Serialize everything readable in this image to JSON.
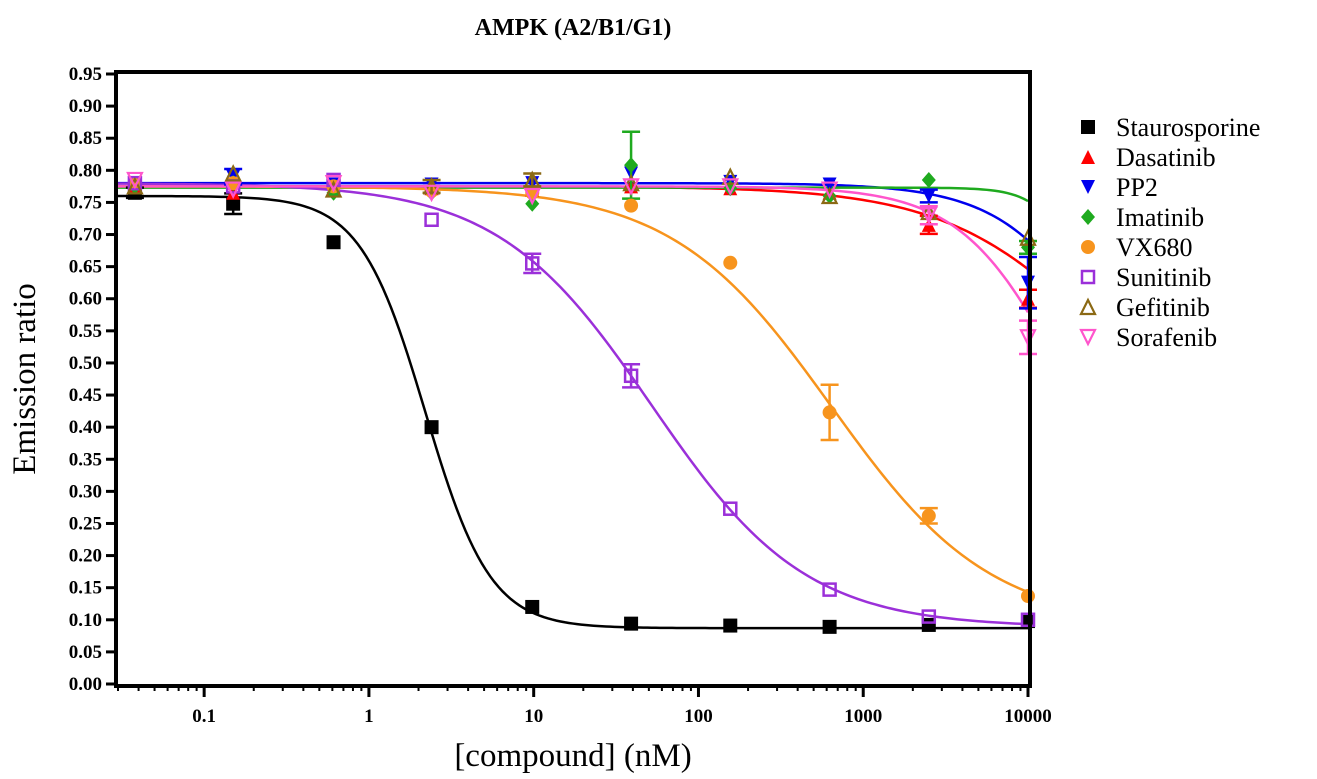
{
  "chart_data": {
    "type": "scatter",
    "title": "AMPK (A2/B1/G1)",
    "xlabel": "[compound] (nM)",
    "ylabel": "Emission ratio",
    "xscale": "log",
    "xlim": [
      0.03,
      10000
    ],
    "ylim": [
      0.0,
      0.95
    ],
    "xticks": [
      {
        "value": 0.1,
        "label": "0.1"
      },
      {
        "value": 1,
        "label": "1"
      },
      {
        "value": 10,
        "label": "10"
      },
      {
        "value": 100,
        "label": "100"
      },
      {
        "value": 1000,
        "label": "1000"
      },
      {
        "value": 10000,
        "label": "10000"
      }
    ],
    "yticks": [
      {
        "value": 0.0,
        "label": "0.00"
      },
      {
        "value": 0.05,
        "label": "0.05"
      },
      {
        "value": 0.1,
        "label": "0.10"
      },
      {
        "value": 0.15,
        "label": "0.15"
      },
      {
        "value": 0.2,
        "label": "0.20"
      },
      {
        "value": 0.25,
        "label": "0.25"
      },
      {
        "value": 0.3,
        "label": "0.30"
      },
      {
        "value": 0.35,
        "label": "0.35"
      },
      {
        "value": 0.4,
        "label": "0.40"
      },
      {
        "value": 0.45,
        "label": "0.45"
      },
      {
        "value": 0.5,
        "label": "0.50"
      },
      {
        "value": 0.55,
        "label": "0.55"
      },
      {
        "value": 0.6,
        "label": "0.60"
      },
      {
        "value": 0.65,
        "label": "0.65"
      },
      {
        "value": 0.7,
        "label": "0.70"
      },
      {
        "value": 0.75,
        "label": "0.75"
      },
      {
        "value": 0.8,
        "label": "0.80"
      },
      {
        "value": 0.85,
        "label": "0.85"
      },
      {
        "value": 0.9,
        "label": "0.90"
      },
      {
        "value": 0.95,
        "label": "0.95"
      }
    ],
    "grid": false,
    "legend_position": "right",
    "series": [
      {
        "name": "Staurosporine",
        "color": "#000000",
        "marker": "square-filled",
        "x": [
          0.038,
          0.15,
          0.61,
          2.4,
          9.8,
          39,
          156,
          625,
          2500,
          10000
        ],
        "y": [
          0.765,
          0.748,
          0.688,
          0.4,
          0.12,
          0.094,
          0.091,
          0.089,
          0.092,
          0.098
        ],
        "err": [
          0.008,
          0.016,
          0.006,
          0.006,
          0.006,
          0.004,
          0.004,
          0.004,
          0.004,
          0.004
        ],
        "fit": {
          "top": 0.76,
          "bottom": 0.087,
          "ec50": 2.2,
          "hill": 2.2
        }
      },
      {
        "name": "Dasatinib",
        "color": "#ff0000",
        "marker": "triangle-up-filled",
        "x": [
          0.038,
          0.15,
          0.61,
          2.4,
          9.8,
          39,
          156,
          625,
          2500,
          10000
        ],
        "y": [
          0.775,
          0.765,
          0.77,
          0.772,
          0.77,
          0.775,
          0.772,
          0.765,
          0.715,
          0.6
        ],
        "err": [
          0.006,
          0.006,
          0.006,
          0.006,
          0.006,
          0.006,
          0.006,
          0.006,
          0.014,
          0.014
        ],
        "fit": {
          "top": 0.775,
          "bottom": 0.3,
          "ec50": 30000,
          "hill": 0.9
        }
      },
      {
        "name": "PP2",
        "color": "#0000ee",
        "marker": "triangle-down-filled",
        "x": [
          0.038,
          0.15,
          0.61,
          2.4,
          9.8,
          39,
          156,
          625,
          2500,
          10000
        ],
        "y": [
          0.78,
          0.79,
          0.778,
          0.778,
          0.78,
          0.795,
          0.782,
          0.778,
          0.76,
          0.625
        ],
        "err": [
          0.006,
          0.012,
          0.006,
          0.006,
          0.006,
          0.006,
          0.006,
          0.006,
          0.01,
          0.04
        ],
        "fit": {
          "top": 0.78,
          "bottom": 0.15,
          "ec50": 40000,
          "hill": 1.3
        }
      },
      {
        "name": "Imatinib",
        "color": "#1faa1f",
        "marker": "diamond-filled",
        "x": [
          0.038,
          0.15,
          0.61,
          2.4,
          9.8,
          39,
          156,
          625,
          2500,
          10000
        ],
        "y": [
          0.775,
          0.78,
          0.765,
          0.765,
          0.748,
          0.808,
          0.772,
          0.76,
          0.785,
          0.68
        ],
        "err": [
          0.006,
          0.006,
          0.006,
          0.006,
          0.006,
          0.052,
          0.006,
          0.006,
          0.006,
          0.01
        ],
        "fit": {
          "top": 0.773,
          "bottom": 0.05,
          "ec50": 30000,
          "hill": 3.2
        }
      },
      {
        "name": "VX680",
        "color": "#f7941d",
        "marker": "circle-filled",
        "x": [
          0.038,
          0.15,
          0.61,
          2.4,
          9.8,
          39,
          156,
          625,
          2500,
          10000
        ],
        "y": [
          0.78,
          0.78,
          0.775,
          0.768,
          0.765,
          0.745,
          0.656,
          0.423,
          0.262,
          0.137
        ],
        "err": [
          0.006,
          0.006,
          0.006,
          0.006,
          0.006,
          0.006,
          0.006,
          0.043,
          0.012,
          0.006
        ],
        "fit": {
          "top": 0.775,
          "bottom": 0.09,
          "ec50": 640,
          "hill": 0.9
        }
      },
      {
        "name": "Sunitinib",
        "color": "#9b30d9",
        "marker": "square-open",
        "x": [
          0.038,
          0.15,
          0.61,
          2.4,
          9.8,
          39,
          156,
          625,
          2500,
          10000
        ],
        "y": [
          0.78,
          0.775,
          0.785,
          0.723,
          0.655,
          0.48,
          0.273,
          0.147,
          0.105,
          0.1
        ],
        "err": [
          0.006,
          0.006,
          0.006,
          0.006,
          0.015,
          0.018,
          0.006,
          0.006,
          0.006,
          0.006
        ],
        "fit": {
          "top": 0.78,
          "bottom": 0.088,
          "ec50": 52,
          "hill": 0.93
        }
      },
      {
        "name": "Gefitinib",
        "color": "#8b6914",
        "marker": "triangle-up-open",
        "x": [
          0.038,
          0.15,
          0.61,
          2.4,
          9.8,
          39,
          156,
          625,
          2500,
          10000
        ],
        "y": [
          0.775,
          0.795,
          0.77,
          0.775,
          0.785,
          0.78,
          0.79,
          0.76,
          0.735,
          0.695
        ],
        "err": [
          0.006,
          0.006,
          0.006,
          0.01,
          0.01,
          0.006,
          0.006,
          0.006,
          0.006,
          0.006
        ],
        "fit": null
      },
      {
        "name": "Sorafenib",
        "color": "#ff55cc",
        "marker": "triangle-down-open",
        "x": [
          0.038,
          0.15,
          0.61,
          2.4,
          9.8,
          39,
          156,
          625,
          2500,
          10000
        ],
        "y": [
          0.785,
          0.77,
          0.78,
          0.765,
          0.76,
          0.775,
          0.775,
          0.77,
          0.73,
          0.54
        ],
        "err": [
          0.006,
          0.006,
          0.006,
          0.006,
          0.006,
          0.006,
          0.006,
          0.006,
          0.014,
          0.026
        ],
        "fit": {
          "top": 0.775,
          "bottom": 0.2,
          "ec50": 16000,
          "hill": 1.4
        }
      }
    ]
  }
}
